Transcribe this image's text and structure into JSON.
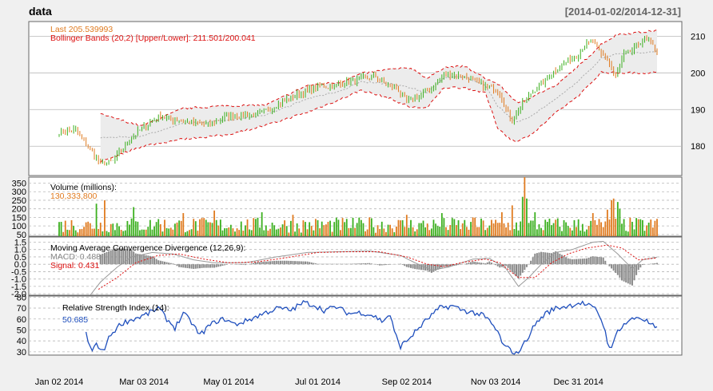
{
  "header": {
    "title": "data",
    "range": "[2014-01-02/2014-12-31]"
  },
  "chart_data": [
    {
      "type": "candlestick",
      "panel": "price",
      "labels": {
        "last": "Last 205.539993",
        "bbands": "Bollinger Bands (20,2) [Upper/Lower]: 211.501/200.041"
      },
      "last": 205.54,
      "bbands_upper": 211.501,
      "bbands_lower": 200.041,
      "ylim": [
        172,
        214
      ],
      "yticks": [
        "180",
        "190",
        "200",
        "210"
      ],
      "anchors": [
        [
          0,
          183.9
        ],
        [
          8,
          184.5
        ],
        [
          14,
          180
        ],
        [
          20,
          175
        ],
        [
          26,
          176
        ],
        [
          33,
          181
        ],
        [
          40,
          185
        ],
        [
          48,
          188
        ],
        [
          55,
          187.3
        ],
        [
          63,
          186.5
        ],
        [
          72,
          185.8
        ],
        [
          80,
          188
        ],
        [
          88,
          188.5
        ],
        [
          95,
          188.6
        ],
        [
          103,
          190.5
        ],
        [
          110,
          192.8
        ],
        [
          118,
          194.6
        ],
        [
          125,
          196.5
        ],
        [
          130,
          196.2
        ],
        [
          140,
          197.4
        ],
        [
          147,
          198.5
        ],
        [
          153,
          199
        ],
        [
          158,
          197
        ],
        [
          163,
          196
        ],
        [
          168,
          192
        ],
        [
          175,
          194
        ],
        [
          180,
          196
        ],
        [
          186,
          199.3
        ],
        [
          191,
          199.5
        ],
        [
          197,
          198.8
        ],
        [
          203,
          197
        ],
        [
          208,
          196.2
        ],
        [
          213,
          194.5
        ],
        [
          216,
          190
        ],
        [
          219,
          187
        ],
        [
          222,
          190
        ],
        [
          228,
          194.5
        ],
        [
          235,
          198
        ],
        [
          240,
          201
        ],
        [
          245,
          203
        ],
        [
          250,
          204.5
        ],
        [
          254,
          207.8
        ],
        [
          258,
          208.5
        ],
        [
          262,
          205
        ],
        [
          265,
          204
        ],
        [
          267,
          201
        ],
        [
          269,
          199
        ],
        [
          273,
          205
        ],
        [
          277,
          206
        ],
        [
          281,
          208.5
        ],
        [
          285,
          209
        ],
        [
          289,
          205.54
        ]
      ],
      "bands": {
        "start": 20,
        "up_lo": [
          [
            20,
            188.7
          ],
          [
            40,
            185.5
          ],
          [
            60,
            190.3
          ],
          [
            80,
            191
          ],
          [
            100,
            191.2
          ],
          [
            120,
            196.6
          ],
          [
            136,
            197.5
          ],
          [
            146,
            199.8
          ],
          [
            160,
            201
          ],
          [
            170,
            201.3
          ],
          [
            178,
            198.5
          ],
          [
            186,
            201.5
          ],
          [
            196,
            201.8
          ],
          [
            206,
            198.5
          ],
          [
            212,
            197
          ],
          [
            222,
            191.6
          ],
          [
            230,
            194
          ],
          [
            240,
            196.5
          ],
          [
            252,
            202.3
          ],
          [
            262,
            207.8
          ],
          [
            270,
            210.5
          ],
          [
            289,
            211.501
          ]
        ],
        "lo_lo": [
          [
            20,
            175.8
          ],
          [
            40,
            180
          ],
          [
            60,
            182
          ],
          [
            80,
            183
          ],
          [
            100,
            185.7
          ],
          [
            120,
            189.3
          ],
          [
            136,
            192.8
          ],
          [
            146,
            195.3
          ],
          [
            160,
            193
          ],
          [
            170,
            190.6
          ],
          [
            178,
            190.5
          ],
          [
            186,
            196
          ],
          [
            196,
            196
          ],
          [
            206,
            194.5
          ],
          [
            212,
            185
          ],
          [
            218,
            182
          ],
          [
            222,
            181.3
          ],
          [
            230,
            184
          ],
          [
            240,
            189
          ],
          [
            252,
            194.2
          ],
          [
            262,
            200.2
          ],
          [
            270,
            200
          ],
          [
            289,
            200.041
          ]
        ]
      }
    },
    {
      "type": "bar",
      "panel": "volume",
      "labels": {
        "title": "Volume (millions):",
        "value": "130,333,800"
      },
      "last_millions": 130.3338,
      "ylim": [
        40,
        385
      ],
      "yticks": [
        "50",
        "100",
        "150",
        "200",
        "250",
        "300",
        "350"
      ],
      "spikes": [
        [
          18,
          230
        ],
        [
          22,
          250
        ],
        [
          36,
          210
        ],
        [
          48,
          140
        ],
        [
          60,
          175
        ],
        [
          75,
          190
        ],
        [
          98,
          180
        ],
        [
          113,
          165
        ],
        [
          150,
          150
        ],
        [
          168,
          165
        ],
        [
          185,
          175
        ],
        [
          200,
          150
        ],
        [
          214,
          180
        ],
        [
          219,
          220
        ],
        [
          224,
          270
        ],
        [
          225,
          385
        ],
        [
          226,
          260
        ],
        [
          230,
          180
        ],
        [
          258,
          175
        ],
        [
          265,
          195
        ],
        [
          267,
          250
        ],
        [
          268,
          260
        ],
        [
          270,
          240
        ],
        [
          271,
          200
        ],
        [
          288,
          130
        ]
      ]
    },
    {
      "type": "line",
      "panel": "macd",
      "labels": {
        "title": "Moving Average Convergence Divergence (12,26,9):",
        "macd": "MACD: 0.488",
        "signal": "Signal: 0.431"
      },
      "macd": 0.488,
      "signal": 0.431,
      "ylim": [
        -2.1,
        1.85
      ],
      "yticks": [
        "-2.0",
        "-1.5",
        "-1.0",
        "-0.5",
        "0.0",
        "0.5",
        "1.0",
        "1.5"
      ],
      "series": [
        {
          "name": "MACD",
          "values": [
            [
              15,
              -2.1
            ],
            [
              20,
              -1.2
            ],
            [
              28,
              -0.2
            ],
            [
              35,
              0.5
            ],
            [
              45,
              0.8
            ],
            [
              55,
              0.7
            ],
            [
              65,
              0.3
            ],
            [
              75,
              0.1
            ],
            [
              90,
              0.1
            ],
            [
              105,
              0.5
            ],
            [
              120,
              0.8
            ],
            [
              135,
              0.85
            ],
            [
              150,
              0.9
            ],
            [
              165,
              0.6
            ],
            [
              172,
              0.1
            ],
            [
              180,
              -0.4
            ],
            [
              188,
              -0.2
            ],
            [
              200,
              0.35
            ],
            [
              208,
              0.4
            ],
            [
              216,
              -0.3
            ],
            [
              222,
              -1.5
            ],
            [
              227,
              -0.9
            ],
            [
              233,
              0
            ],
            [
              240,
              0.8
            ],
            [
              248,
              1.0
            ],
            [
              258,
              1.5
            ],
            [
              263,
              1.55
            ],
            [
              270,
              0.7
            ],
            [
              277,
              -0.3
            ],
            [
              282,
              0.3
            ],
            [
              289,
              0.488
            ]
          ]
        },
        {
          "name": "Signal",
          "values": [
            [
              19,
              -1.7
            ],
            [
              28,
              -0.9
            ],
            [
              37,
              0.1
            ],
            [
              48,
              0.6
            ],
            [
              58,
              0.7
            ],
            [
              70,
              0.35
            ],
            [
              82,
              0.1
            ],
            [
              95,
              0.15
            ],
            [
              110,
              0.45
            ],
            [
              125,
              0.8
            ],
            [
              140,
              0.85
            ],
            [
              155,
              0.85
            ],
            [
              168,
              0.5
            ],
            [
              178,
              0
            ],
            [
              186,
              -0.15
            ],
            [
              196,
              0.15
            ],
            [
              206,
              0.35
            ],
            [
              213,
              0.1
            ],
            [
              222,
              -0.9
            ],
            [
              230,
              -0.9
            ],
            [
              238,
              0.1
            ],
            [
              246,
              0.7
            ],
            [
              255,
              1.1
            ],
            [
              265,
              1.3
            ],
            [
              272,
              1.1
            ],
            [
              280,
              0.3
            ],
            [
              289,
              0.431
            ]
          ]
        }
      ]
    },
    {
      "type": "line",
      "panel": "rsi",
      "labels": {
        "title": "Relative Strength Index (14):",
        "value": "50.685"
      },
      "rsi": 50.685,
      "ylim": [
        27,
        81
      ],
      "yticks": [
        "30",
        "40",
        "50",
        "60",
        "70",
        "80"
      ],
      "values": [
        [
          13,
          48
        ],
        [
          14,
          38
        ],
        [
          16,
          32
        ],
        [
          18,
          37
        ],
        [
          20,
          30
        ],
        [
          22,
          34
        ],
        [
          25,
          46
        ],
        [
          30,
          56
        ],
        [
          36,
          60
        ],
        [
          42,
          64
        ],
        [
          48,
          70
        ],
        [
          52,
          60
        ],
        [
          56,
          52
        ],
        [
          60,
          65
        ],
        [
          64,
          57
        ],
        [
          68,
          45
        ],
        [
          72,
          53
        ],
        [
          76,
          58
        ],
        [
          80,
          60
        ],
        [
          85,
          55
        ],
        [
          90,
          58
        ],
        [
          95,
          62
        ],
        [
          100,
          66
        ],
        [
          106,
          70
        ],
        [
          112,
          68
        ],
        [
          118,
          75
        ],
        [
          123,
          73
        ],
        [
          128,
          68
        ],
        [
          134,
          71
        ],
        [
          140,
          65
        ],
        [
          146,
          66
        ],
        [
          152,
          63
        ],
        [
          156,
          58
        ],
        [
          160,
          64
        ],
        [
          162,
          48
        ],
        [
          165,
          35
        ],
        [
          168,
          40
        ],
        [
          172,
          48
        ],
        [
          178,
          60
        ],
        [
          184,
          70
        ],
        [
          190,
          72
        ],
        [
          195,
          68
        ],
        [
          200,
          66
        ],
        [
          205,
          63
        ],
        [
          208,
          58
        ],
        [
          212,
          48
        ],
        [
          215,
          35
        ],
        [
          218,
          32
        ],
        [
          221,
          28
        ],
        [
          225,
          38
        ],
        [
          230,
          55
        ],
        [
          235,
          65
        ],
        [
          240,
          70
        ],
        [
          246,
          72
        ],
        [
          252,
          75
        ],
        [
          256,
          72
        ],
        [
          260,
          68
        ],
        [
          263,
          55
        ],
        [
          265,
          40
        ],
        [
          267,
          32
        ],
        [
          270,
          50
        ],
        [
          275,
          58
        ],
        [
          280,
          62
        ],
        [
          284,
          58
        ],
        [
          289,
          50.685
        ]
      ]
    }
  ],
  "x_axis": {
    "labels": [
      "Jan 02 2014",
      "Mar 03 2014",
      "May 01 2014",
      "Jul 01 2014",
      "Sep 02 2014",
      "Nov 03 2014",
      "Dec 31 2014"
    ],
    "positions": [
      0,
      41,
      82,
      125,
      168,
      211,
      251
    ]
  },
  "colors": {
    "up": "#3cb01f",
    "down": "#e07b20",
    "band": "#dd1111",
    "macd_line": "#888888",
    "rsi": "#1f4fbd",
    "vol_label": "#e07b20",
    "rsi_label": "#1f4fbd",
    "grid": "#b8b8b8"
  }
}
